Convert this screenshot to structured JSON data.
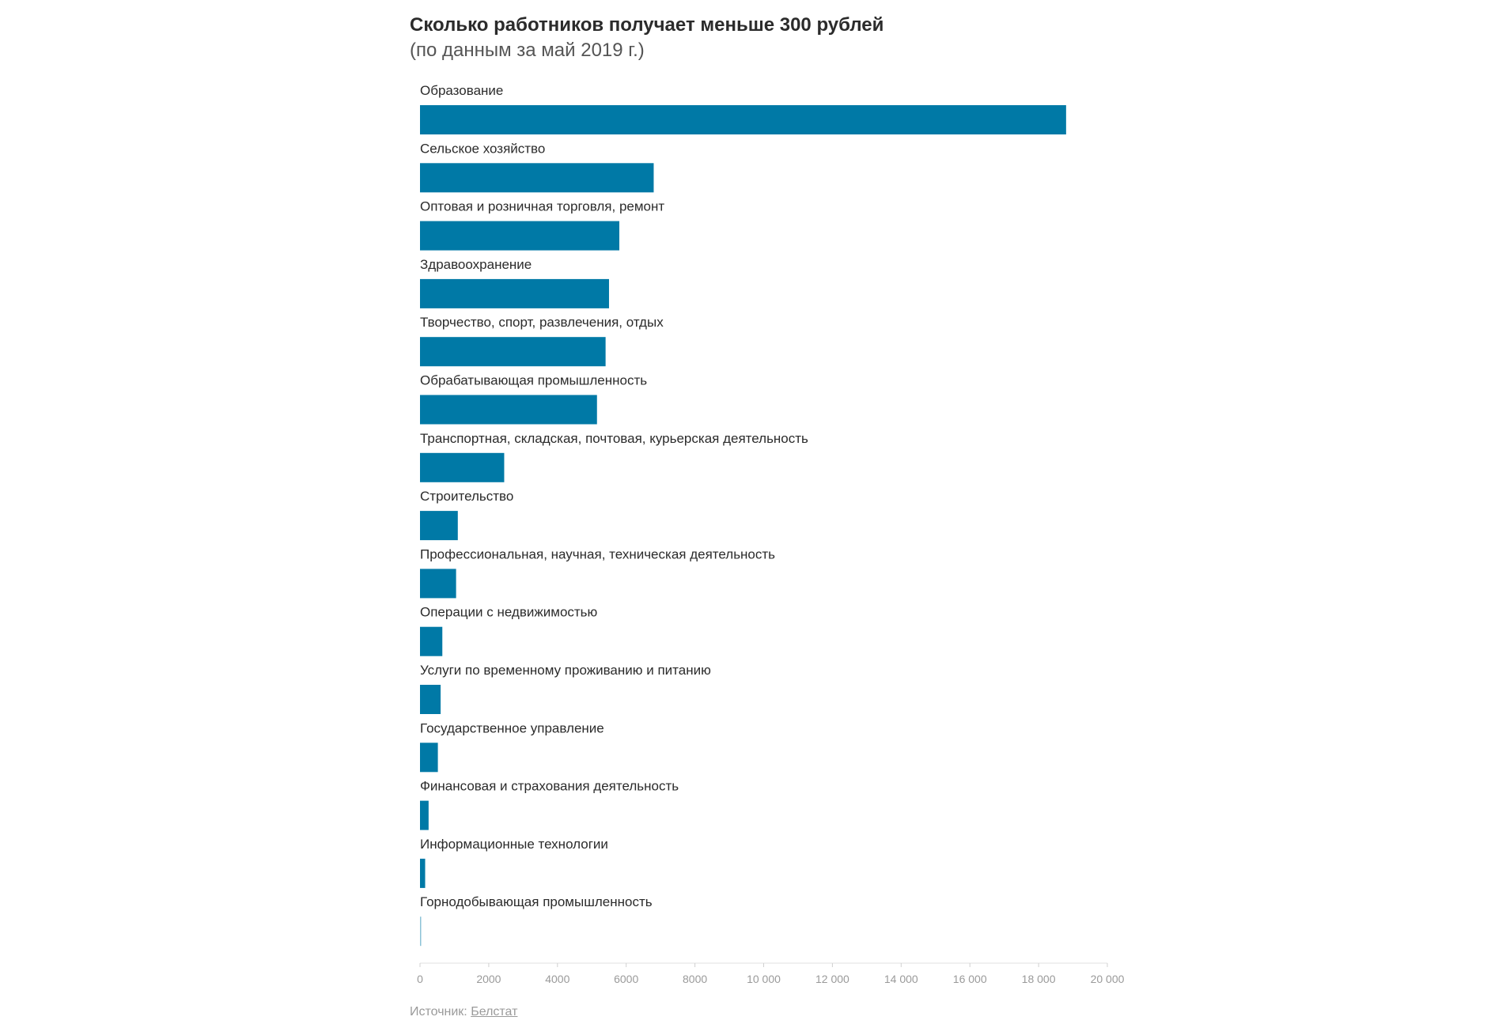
{
  "chart_data": {
    "type": "bar",
    "orientation": "horizontal",
    "title": "Сколько работников получает меньше 300 рублей",
    "subtitle": "(по данным за май 2019 г.)",
    "categories": [
      "Образование",
      "Сельское хозяйство",
      "Оптовая и розничная торговля, ремонт",
      "Здравоохранение",
      "Творчество, спорт, развлечения, отдых",
      "Обрабатывающая промышленность",
      "Транспортная, складская, почтовая, курьерская деятельность",
      "Строительство",
      "Профессиональная, научная, техническая деятельность",
      "Операции с недвижимостью",
      "Услуги по временному проживанию и питанию",
      "Государственное управление",
      "Финансовая и страхования деятельность",
      "Информационные технологии",
      "Горнодобывающая промышленность"
    ],
    "values": [
      18800,
      6800,
      5800,
      5500,
      5400,
      5150,
      2450,
      1100,
      1050,
      650,
      600,
      520,
      250,
      150,
      30
    ],
    "xlim": [
      0,
      20000
    ],
    "xticks": [
      0,
      2000,
      4000,
      6000,
      8000,
      10000,
      12000,
      14000,
      16000,
      18000,
      20000
    ],
    "xtick_labels": [
      "0",
      "2000",
      "4000",
      "6000",
      "8000",
      "10 000",
      "12 000",
      "14 000",
      "16 000",
      "18 000",
      "20 000"
    ],
    "bar_color": "#0079a6",
    "grid": false,
    "legend": "none"
  },
  "source": {
    "prefix": "Источник: ",
    "link_text": "Белстат"
  }
}
